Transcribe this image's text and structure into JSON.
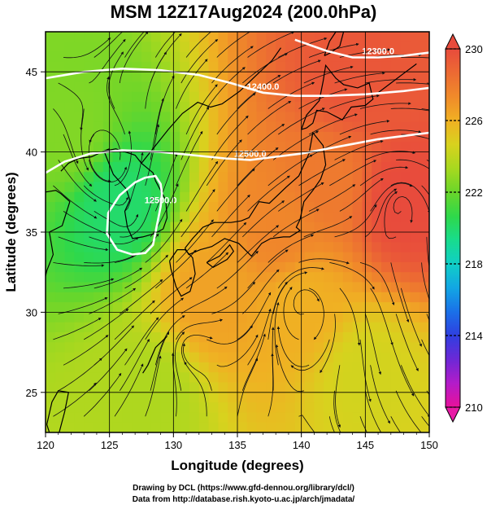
{
  "title": "MSM 12Z17Aug2024 (200.0hPa)",
  "credits": {
    "line1": "Drawing by DCL (https://www.gfd-dennou.org/library/dcl/)",
    "line2": "Data from http://database.rish.kyoto-u.ac.jp/arch/jmadata/"
  },
  "map": {
    "xlabel": "Longitude (degrees)",
    "ylabel": "Latitude  (degrees)",
    "xlim": [
      120,
      150
    ],
    "ylim": [
      22.5,
      47.5
    ],
    "x_ticks": [
      "120",
      "125",
      "130",
      "135",
      "140",
      "145",
      "150"
    ],
    "y_ticks": [
      "25",
      "30",
      "35",
      "40",
      "45"
    ],
    "x_tick_values": [
      120,
      125,
      130,
      135,
      140,
      145,
      150
    ],
    "y_tick_values": [
      25,
      30,
      35,
      40,
      45
    ],
    "grid": true
  },
  "colorbar": {
    "min": 210,
    "max": 230,
    "labels": [
      "230",
      "226",
      "222",
      "218",
      "214",
      "210"
    ],
    "label_values": [
      230,
      226,
      222,
      218,
      214,
      210
    ],
    "colors": [
      "#e8119a",
      "#b31cc9",
      "#6d28d6",
      "#2f3fe0",
      "#1a71e8",
      "#12a6e4",
      "#10cfc6",
      "#18dc8c",
      "#2fd84a",
      "#6ad62a",
      "#a8d81f",
      "#d8d21e",
      "#f0b023",
      "#f08a2a",
      "#ec6a33",
      "#e84b3c"
    ]
  },
  "contours": [
    {
      "label": "12300.0",
      "lon": [
        139.5,
        142,
        144,
        146,
        148,
        150
      ],
      "lat": [
        47.0,
        46.3,
        45.9,
        45.9,
        46.0,
        46.2
      ]
    },
    {
      "label": "12400.0",
      "lon": [
        120,
        123,
        126,
        129,
        132,
        134.5,
        137,
        139.5,
        142,
        145,
        148,
        150
      ],
      "lat": [
        44.6,
        45.0,
        45.2,
        45.1,
        44.8,
        44.3,
        43.7,
        43.5,
        43.5,
        43.6,
        43.8,
        44.0
      ]
    },
    {
      "label": "12500.0",
      "lon": [
        120,
        121.5,
        123.5,
        126,
        129,
        131.5,
        134,
        136,
        138,
        140,
        142,
        144,
        146,
        148,
        150
      ],
      "lat": [
        38.7,
        39.4,
        39.9,
        40.1,
        40.0,
        39.8,
        39.6,
        39.5,
        39.7,
        39.9,
        40.2,
        40.5,
        40.8,
        41.0,
        41.2
      ]
    },
    {
      "label": "12500.0",
      "lon": [
        127.8,
        127.0,
        125.8,
        124.9,
        124.8,
        125.6,
        126.8,
        127.8,
        128.4,
        128.6,
        128.8,
        129.0,
        129.1,
        129.0,
        128.6,
        127.8
      ],
      "lat": [
        38.4,
        38.1,
        37.3,
        36.2,
        34.9,
        33.9,
        33.6,
        33.7,
        34.2,
        35.0,
        35.8,
        36.6,
        37.4,
        38.0,
        38.5,
        38.4
      ]
    }
  ],
  "heat_centers": [
    {
      "lon": 144.0,
      "lat": 44.5,
      "value": 229.5
    },
    {
      "lon": 147.8,
      "lat": 37.0,
      "value": 230.0
    },
    {
      "lon": 142.0,
      "lat": 38.0,
      "value": 228.0
    },
    {
      "lon": 138.5,
      "lat": 35.0,
      "value": 227.5
    },
    {
      "lon": 133.0,
      "lat": 31.0,
      "value": 226.5
    },
    {
      "lon": 140.0,
      "lat": 30.5,
      "value": 226.0
    },
    {
      "lon": 125.5,
      "lat": 36.8,
      "value": 220.0
    },
    {
      "lon": 122.0,
      "lat": 41.0,
      "value": 222.5
    },
    {
      "lon": 128.0,
      "lat": 25.0,
      "value": 223.5
    },
    {
      "lon": 145.0,
      "lat": 26.0,
      "value": 224.5
    }
  ],
  "vortex_centers": [
    {
      "lon": 126.5,
      "lat": 35.5,
      "spin": 1
    },
    {
      "lon": 140.0,
      "lat": 30.8,
      "spin": -1
    },
    {
      "lon": 125.0,
      "lat": 39.5,
      "spin": 1
    },
    {
      "lon": 147.8,
      "lat": 37.0,
      "spin": -1
    },
    {
      "lon": 131.0,
      "lat": 28.0,
      "spin": -1
    }
  ],
  "coastlines": [
    {
      "name": "honshu",
      "lon": [
        130.9,
        131.5,
        132.3,
        133.2,
        134.5,
        135.3,
        135.9,
        136.7,
        137.5,
        138.8,
        139.8,
        140.6,
        140.9,
        141.7,
        141.9,
        141.5,
        140.9,
        140.2,
        139.9,
        139.6,
        139.9,
        139.1,
        138.6,
        137.6,
        136.9,
        136.1,
        135.1,
        134.0,
        133.0,
        132.1,
        131.2,
        130.9
      ],
      "lat": [
        34.0,
        34.6,
        35.3,
        35.6,
        35.6,
        35.7,
        35.9,
        36.9,
        36.8,
        37.8,
        38.5,
        39.9,
        41.2,
        40.4,
        39.2,
        38.3,
        37.6,
        36.9,
        35.8,
        35.3,
        35.1,
        34.7,
        34.7,
        34.6,
        34.3,
        33.5,
        34.3,
        34.6,
        34.1,
        33.9,
        33.6,
        34.0
      ]
    },
    {
      "name": "hokkaido",
      "lon": [
        140.0,
        140.4,
        141.4,
        141.7,
        141.9,
        142.7,
        143.3,
        144.4,
        145.3,
        145.6,
        145.0,
        143.9,
        143.2,
        142.0,
        141.2,
        140.9,
        140.4,
        140.0
      ],
      "lat": [
        41.4,
        42.3,
        43.2,
        44.4,
        45.4,
        44.6,
        44.2,
        44.0,
        44.3,
        43.3,
        42.9,
        42.8,
        42.0,
        42.5,
        42.6,
        41.8,
        41.5,
        41.4
      ]
    },
    {
      "name": "kyushu",
      "lon": [
        129.7,
        130.3,
        130.9,
        131.5,
        131.7,
        131.3,
        130.6,
        130.2,
        129.8,
        129.7
      ],
      "lat": [
        33.2,
        33.9,
        33.9,
        33.4,
        32.4,
        31.3,
        31.0,
        31.6,
        32.7,
        33.2
      ]
    },
    {
      "name": "shikoku",
      "lon": [
        132.6,
        133.6,
        134.4,
        134.7,
        134.2,
        133.1,
        132.6
      ],
      "lat": [
        33.1,
        33.5,
        34.2,
        33.8,
        33.3,
        32.8,
        33.1
      ]
    },
    {
      "name": "korea",
      "lon": [
        124.6,
        125.3,
        126.3,
        126.6,
        126.2,
        126.4,
        126.8,
        127.6,
        128.5,
        129.2,
        129.5,
        129.4,
        128.6,
        128.4,
        127.5,
        127.0,
        125.5,
        124.9,
        124.6
      ],
      "lat": [
        40.0,
        38.6,
        37.7,
        37.0,
        36.3,
        35.3,
        34.6,
        34.7,
        34.9,
        35.2,
        35.9,
        37.0,
        38.2,
        38.7,
        39.3,
        39.8,
        40.2,
        40.1,
        40.0
      ]
    },
    {
      "name": "china",
      "lon": [
        120.0,
        120.8,
        121.2,
        121.9,
        121.3,
        120.3,
        120.6,
        120.1,
        119.9
      ],
      "lat": [
        37.5,
        37.6,
        37.4,
        36.9,
        35.4,
        35.0,
        33.6,
        32.6,
        31.9
      ]
    },
    {
      "name": "liaodong",
      "lon": [
        121.2,
        121.8,
        122.6,
        123.6,
        124.4,
        125.0
      ],
      "lat": [
        38.8,
        39.3,
        39.6,
        39.7,
        40.0,
        40.2
      ]
    },
    {
      "name": "taiwan",
      "lon": [
        120.1,
        120.5,
        121.0,
        121.8,
        121.5,
        120.9,
        120.3,
        120.1
      ],
      "lat": [
        23.0,
        24.4,
        25.1,
        25.0,
        23.8,
        22.0,
        22.5,
        23.0
      ]
    },
    {
      "name": "sakhalin",
      "lon": [
        141.8,
        142.2,
        142.7,
        143.3,
        143.0,
        142.3,
        141.8
      ],
      "lat": [
        46.0,
        46.9,
        47.5,
        47.5,
        46.6,
        46.2,
        46.0
      ]
    },
    {
      "name": "kurils",
      "lon": [
        146.0,
        147.0,
        148.0,
        149.0
      ],
      "lat": [
        43.7,
        44.3,
        44.9,
        45.5
      ]
    },
    {
      "name": "ryukyu",
      "lon": [
        127.6,
        128.0,
        128.6,
        129.5
      ],
      "lat": [
        26.2,
        26.7,
        27.8,
        28.5
      ]
    },
    {
      "name": "primorye",
      "lon": [
        127.5,
        129.6,
        130.7,
        131.9,
        132.9,
        133.8,
        135.2,
        136.5,
        137.7,
        138.4
      ],
      "lat": [
        39.3,
        41.4,
        42.4,
        43.1,
        42.8,
        43.0,
        43.8,
        44.8,
        45.7,
        46.5
      ]
    }
  ]
}
